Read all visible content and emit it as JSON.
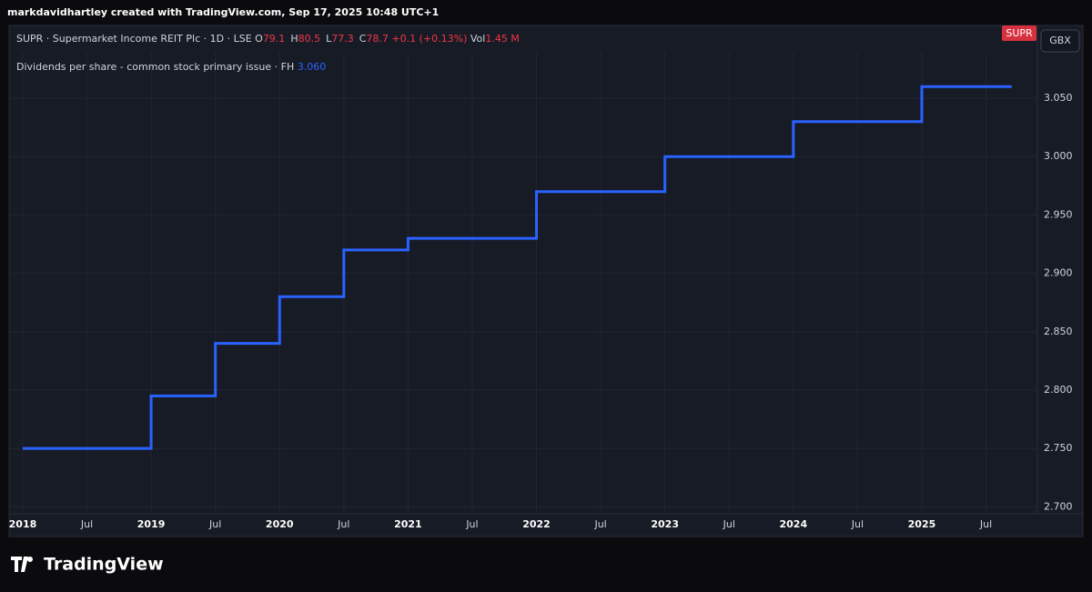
{
  "header": {
    "attribution": "markdavidhartley created with TradingView.com, Sep 17, 2025 10:48 UTC+1"
  },
  "symbol": {
    "name": "SUPR · Supermarket Income REIT Plc · 1D · LSE",
    "ohlc": [
      {
        "key": "O",
        "value": "79.1"
      },
      {
        "key": "H",
        "value": "80.5"
      },
      {
        "key": "L",
        "value": "77.3"
      },
      {
        "key": "C",
        "value": "78.7"
      }
    ],
    "change": "+0.1 (+0.13%)",
    "volume": {
      "key": "Vol",
      "value": "1.45 M"
    }
  },
  "badges": {
    "symbol": "SUPR",
    "currency": "GBX"
  },
  "chart_data": {
    "type": "line",
    "step": "after",
    "x": [
      2018,
      2019,
      2019.5,
      2020,
      2020.5,
      2021,
      2022,
      2023,
      2024,
      2025,
      2025.7
    ],
    "series": [
      {
        "name": "Dividends per share - common stock primary issue · FH",
        "color": "#2962ff",
        "values": [
          2.75,
          2.795,
          2.84,
          2.88,
          2.92,
          2.93,
          2.97,
          3.0,
          3.03,
          3.06,
          3.06
        ],
        "last_label": "3.060"
      }
    ],
    "xlim": [
      2017.894,
      2025.9
    ],
    "xticks": [
      2018,
      {
        "value": 2018.5,
        "label": "Jul"
      },
      2019,
      {
        "value": 2019.5,
        "label": "Jul"
      },
      2020,
      {
        "value": 2020.5,
        "label": "Jul"
      },
      2021,
      {
        "value": 2021.5,
        "label": "Jul"
      },
      2022,
      {
        "value": 2022.5,
        "label": "Jul"
      },
      2023,
      {
        "value": 2023.5,
        "label": "Jul"
      },
      2024,
      {
        "value": 2024.5,
        "label": "Jul"
      },
      2025,
      {
        "value": 2025.5,
        "label": "Jul"
      }
    ],
    "ylim": [
      2.694,
      3.089
    ],
    "yticks": [
      {
        "value": 2.7,
        "label": "2.700"
      },
      {
        "value": 2.75,
        "label": "2.750"
      },
      {
        "value": 2.8,
        "label": "2.800"
      },
      {
        "value": 2.85,
        "label": "2.850"
      },
      {
        "value": 2.9,
        "label": "2.900"
      },
      {
        "value": 2.95,
        "label": "2.950"
      },
      {
        "value": 3.0,
        "label": "3.000"
      },
      {
        "value": 3.05,
        "label": "3.050"
      }
    ],
    "grid": true
  },
  "footer": {
    "logo": "TradingView"
  }
}
